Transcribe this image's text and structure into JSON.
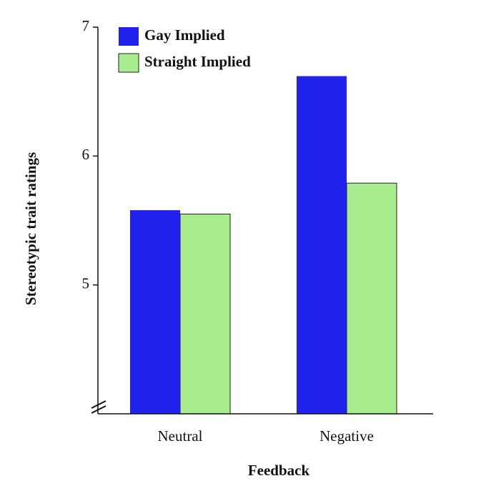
{
  "chart_data": {
    "type": "bar",
    "x_label": "Feedback",
    "y_label": "Stereotypic trait ratings",
    "categories": [
      "Neutral",
      "Negative"
    ],
    "series": [
      {
        "name": "Gay Implied",
        "color": "#2222ee",
        "values": [
          5.58,
          6.62
        ]
      },
      {
        "name": "Straight Implied",
        "color": "#a8ec90",
        "values": [
          5.55,
          5.79
        ]
      }
    ],
    "ylim": [
      4,
      7
    ],
    "yticks": [
      5,
      6,
      7
    ],
    "axis_break": true,
    "legend": "top-left"
  }
}
